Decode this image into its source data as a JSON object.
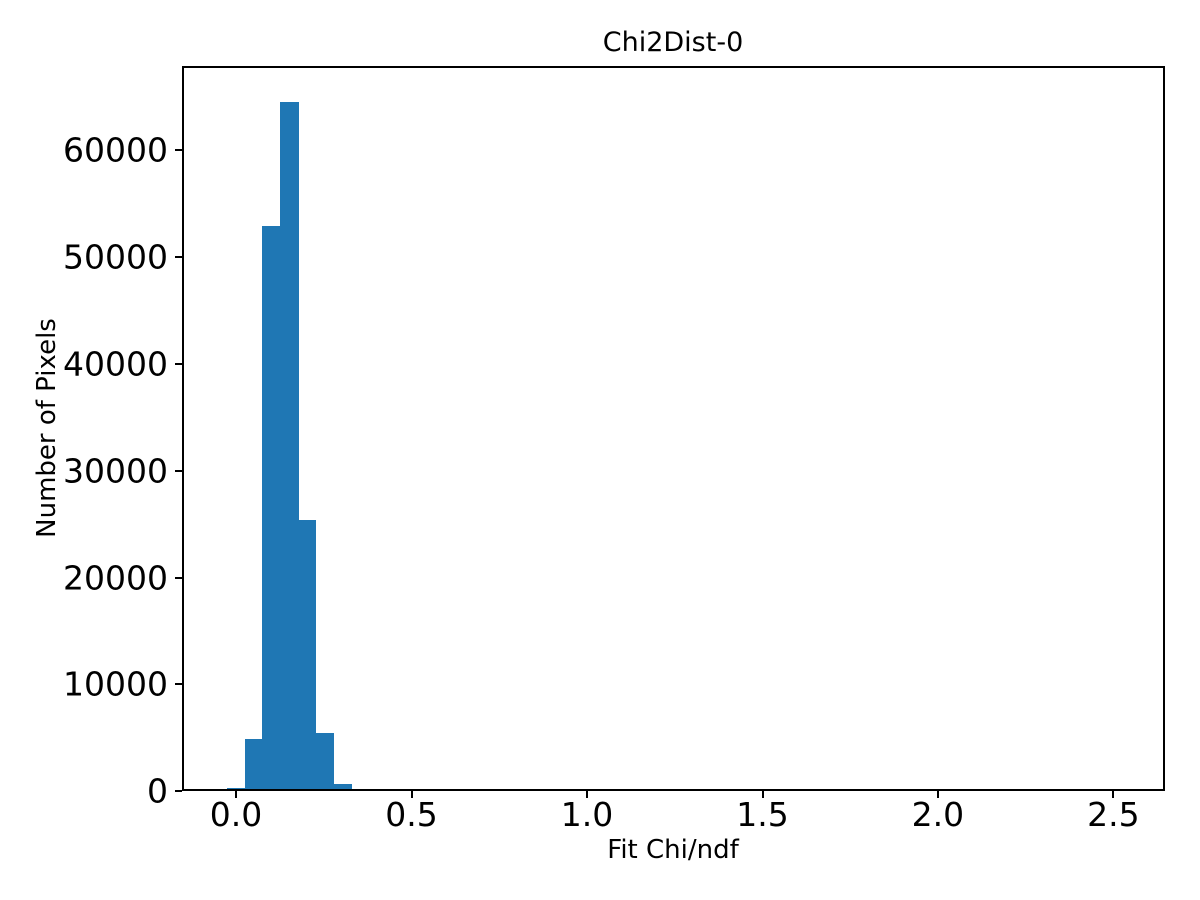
{
  "chart_data": {
    "type": "histogram",
    "title": "Chi2Dist-0",
    "xlabel": "Fit Chi/ndf",
    "ylabel": "Number of Pixels",
    "bar_color": "#1f77b4",
    "background_color": "#ffffff",
    "axis_color": "#000000",
    "grid": false,
    "legend": null,
    "xlim": [
      -0.154,
      2.647
    ],
    "ylim": [
      0,
      67900
    ],
    "x_ticks": [
      0.0,
      0.5,
      1.0,
      1.5,
      2.0,
      2.5
    ],
    "x_tick_labels": [
      "0.0",
      "0.5",
      "1.0",
      "1.5",
      "2.0",
      "2.5"
    ],
    "y_ticks": [
      0,
      10000,
      20000,
      30000,
      40000,
      50000,
      60000
    ],
    "y_tick_labels": [
      "0",
      "10000",
      "20000",
      "30000",
      "40000",
      "50000",
      "60000"
    ],
    "bin_start": -0.0266,
    "bin_width": 0.0509,
    "counts": [
      310,
      4870,
      52900,
      64500,
      25400,
      5400,
      630,
      230
    ]
  }
}
